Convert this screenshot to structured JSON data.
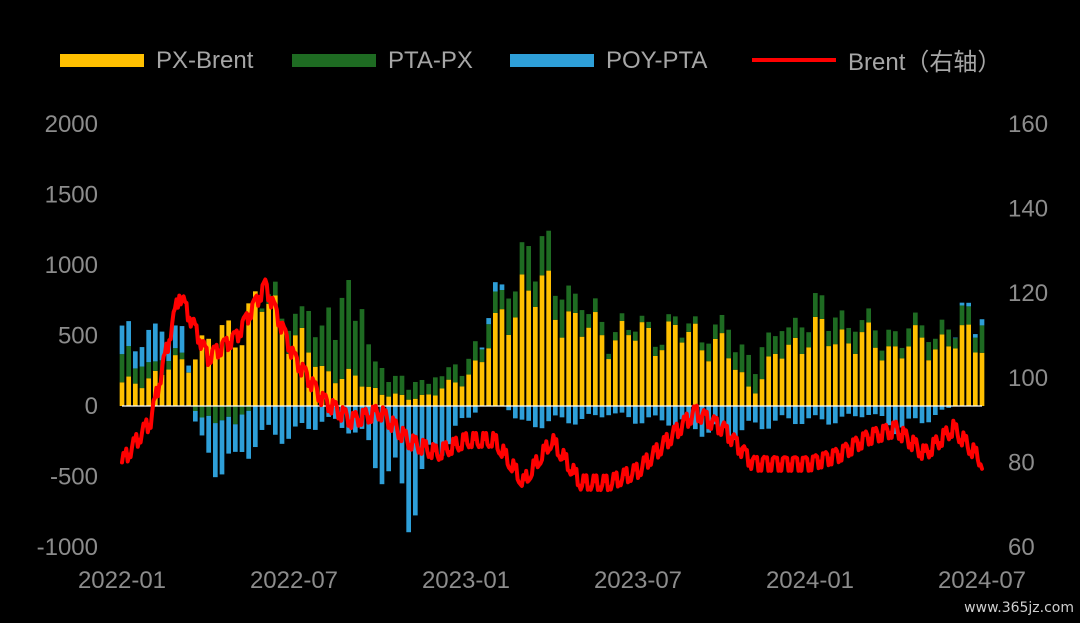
{
  "colors": {
    "background": "#000000",
    "px_brent": "#FFC000",
    "pta_px": "#1E6B22",
    "poy_pta": "#2E9FD8",
    "brent": "#FF0000",
    "axis_text": "#8C8C8C",
    "zero_line": "#FFFFFF"
  },
  "watermark": "www.365jz.com",
  "chart_data": {
    "type": "bar+line",
    "title": "",
    "xlabel": "",
    "ylabel_left": "",
    "ylabel_right": "",
    "legend_position": "top",
    "legend": [
      {
        "key": "px_brent",
        "label": "PX-Brent",
        "kind": "bar"
      },
      {
        "key": "pta_px",
        "label": "PTA-PX",
        "kind": "bar"
      },
      {
        "key": "poy_pta",
        "label": "POY-PTA",
        "kind": "bar"
      },
      {
        "key": "brent",
        "label": "Brent（右轴）",
        "kind": "line"
      }
    ],
    "y_left": {
      "min": -1000,
      "max": 2000,
      "ticks": [
        2000,
        1500,
        1000,
        500,
        0,
        -500,
        -1000
      ]
    },
    "y_right": {
      "min": 60,
      "max": 160,
      "ticks": [
        160,
        140,
        120,
        100,
        80,
        60
      ]
    },
    "x_ticks": [
      "2022-01",
      "2022-07",
      "2023-01",
      "2023-07",
      "2024-01",
      "2024-07"
    ],
    "x_tick_months": [
      0,
      6,
      12,
      18,
      24,
      30
    ],
    "months": [
      "2022-01",
      "2022-02",
      "2022-03",
      "2022-04",
      "2022-05",
      "2022-06",
      "2022-07",
      "2022-08",
      "2022-09",
      "2022-10",
      "2022-11",
      "2022-12",
      "2023-01",
      "2023-02",
      "2023-03",
      "2023-04",
      "2023-05",
      "2023-06",
      "2023-07",
      "2023-08",
      "2023-09",
      "2023-10",
      "2023-11",
      "2023-12",
      "2024-01",
      "2024-02",
      "2024-03",
      "2024-04",
      "2024-05",
      "2024-06",
      "2024-07"
    ],
    "series": [
      {
        "name": "PX-Brent",
        "stacked": true,
        "month_values": [
          150,
          200,
          300,
          450,
          550,
          750,
          500,
          250,
          200,
          100,
          50,
          100,
          200,
          500,
          850,
          750,
          550,
          500,
          500,
          500,
          500,
          400,
          100,
          400,
          500,
          500,
          450,
          400,
          450,
          450,
          500
        ]
      },
      {
        "name": "PTA-PX",
        "stacked": true,
        "month_values": [
          200,
          100,
          50,
          -100,
          -100,
          50,
          150,
          300,
          600,
          150,
          100,
          100,
          100,
          150,
          250,
          250,
          150,
          50,
          50,
          50,
          50,
          150,
          200,
          150,
          150,
          150,
          100,
          100,
          100,
          100,
          150
        ]
      },
      {
        "name": "POY-PTA",
        "stacked": true,
        "month_values": [
          150,
          200,
          200,
          -300,
          -300,
          -200,
          -200,
          -100,
          -150,
          -400,
          -700,
          -300,
          -100,
          100,
          -150,
          -100,
          -100,
          -50,
          -100,
          -100,
          -150,
          -200,
          -150,
          -100,
          -100,
          -100,
          -50,
          -150,
          -100,
          0,
          50
        ]
      },
      {
        "name": "Brent",
        "axis": "right",
        "month_values": [
          80,
          90,
          120,
          105,
          110,
          122,
          105,
          95,
          90,
          92,
          85,
          82,
          85,
          85,
          75,
          85,
          75,
          75,
          78,
          85,
          92,
          88,
          80,
          80,
          80,
          82,
          86,
          88,
          82,
          88,
          80
        ]
      }
    ]
  }
}
